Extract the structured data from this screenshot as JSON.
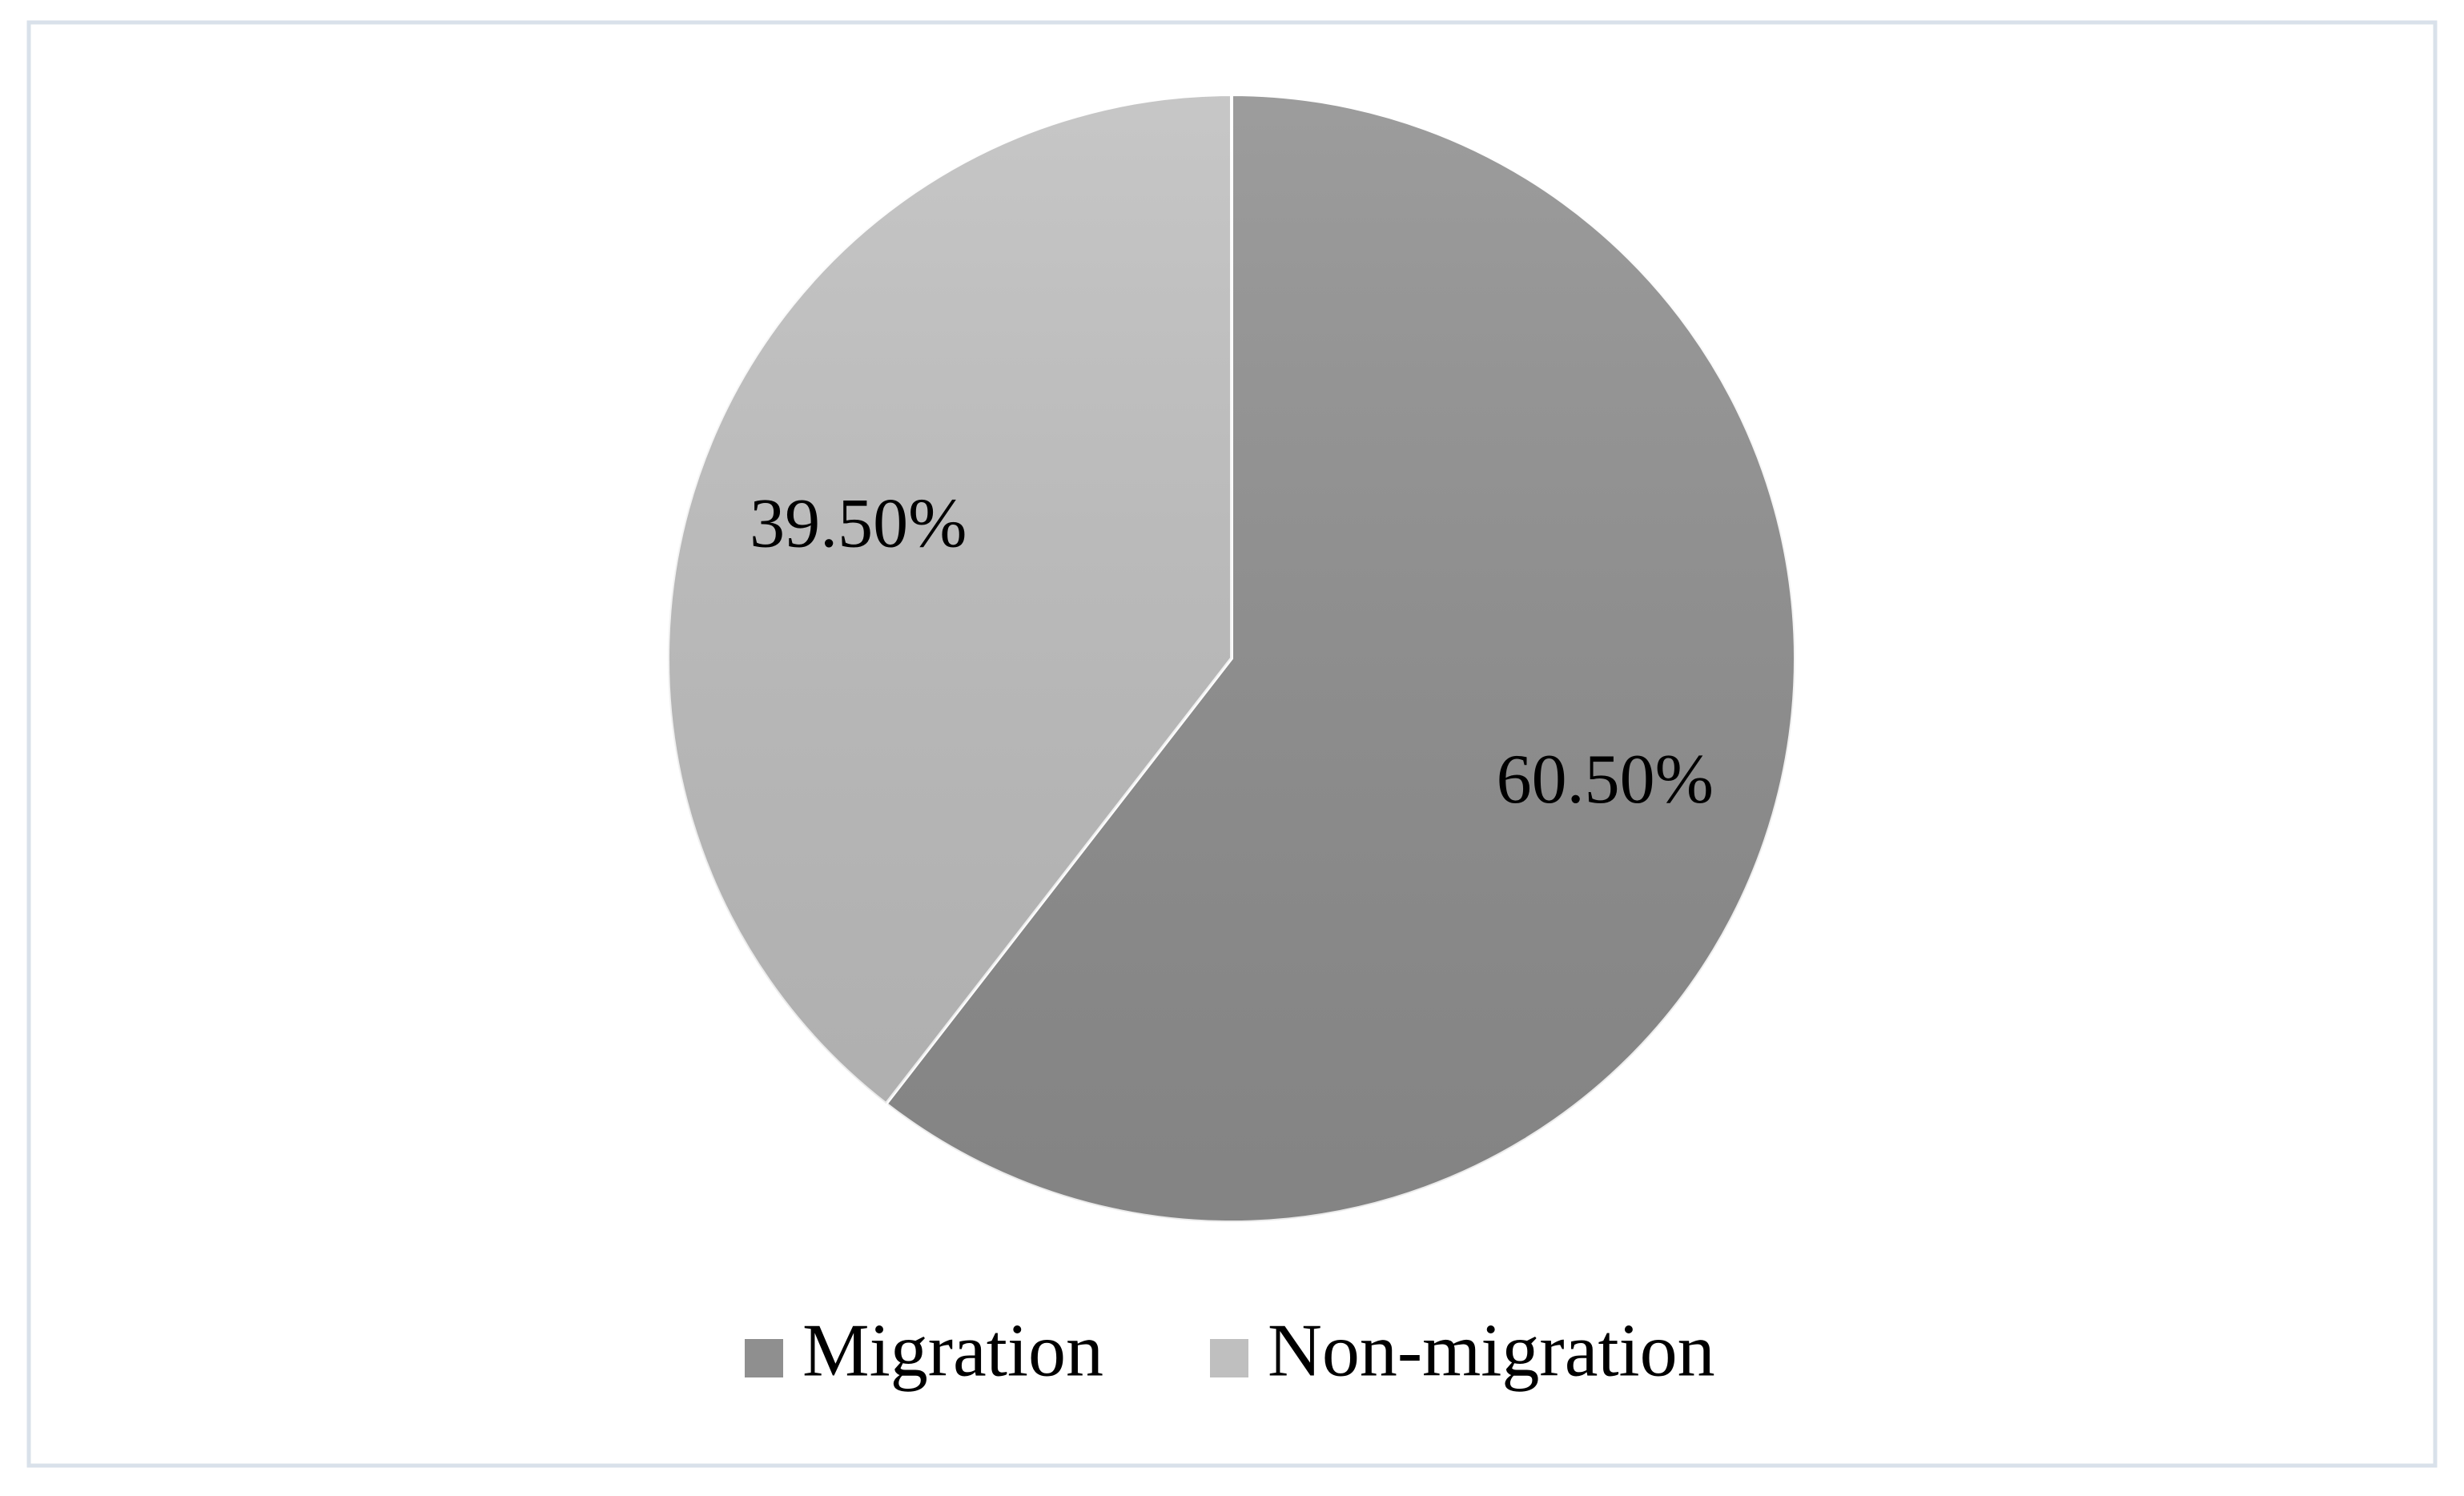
{
  "chart_data": {
    "type": "pie",
    "series": [
      {
        "name": "Migration",
        "color": "#8f8f8f",
        "values": [
          60.5
        ],
        "value_labels": [
          "60.50%"
        ]
      },
      {
        "name": "Non-migration",
        "color": "#bfbfbf",
        "values": [
          39.5
        ],
        "value_labels": [
          "39.50%"
        ]
      }
    ],
    "legend": "bottom"
  }
}
